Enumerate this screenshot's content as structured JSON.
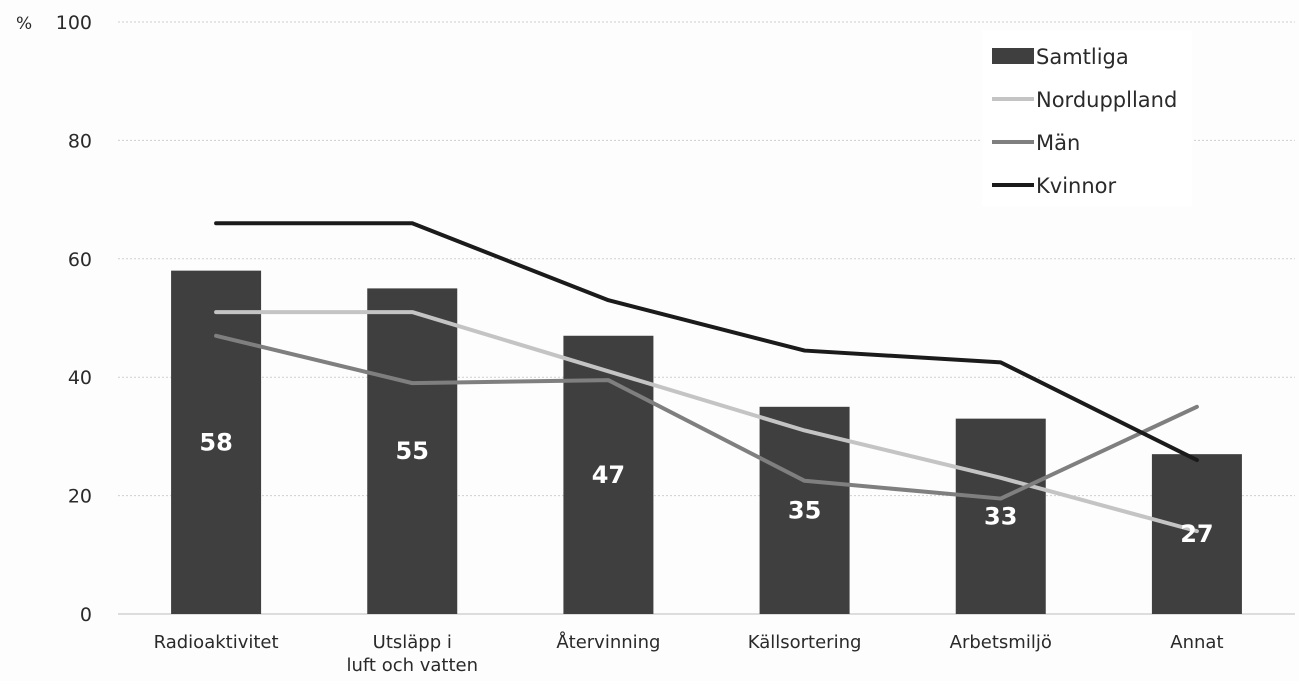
{
  "chart_data": {
    "type": "bar",
    "unit_label": "%",
    "ylim": [
      0,
      100
    ],
    "yticks": [
      0,
      20,
      40,
      60,
      80,
      100
    ],
    "grid": true,
    "legend_position": "top-right",
    "categories": [
      [
        "Radioaktivitet"
      ],
      [
        "Utsläpp i",
        "luft och vatten"
      ],
      [
        "Återvinning"
      ],
      [
        "Källsortering"
      ],
      [
        "Arbetsmiljö"
      ],
      [
        "Annat"
      ]
    ],
    "series": [
      {
        "name": "Samtliga",
        "kind": "bar",
        "color": "#3f3f3f",
        "values": [
          58,
          55,
          47,
          35,
          33,
          27
        ],
        "labels": [
          "58",
          "55",
          "47",
          "35",
          "33",
          "27"
        ]
      },
      {
        "name": "Nordupplland",
        "kind": "line",
        "color": "#c4c4c4",
        "values": [
          51,
          51,
          41,
          31,
          23,
          14
        ]
      },
      {
        "name": "Män",
        "kind": "line",
        "color": "#7f7f7f",
        "values": [
          47,
          39,
          39.5,
          22.5,
          19.5,
          35
        ]
      },
      {
        "name": "Kvinnor",
        "kind": "line",
        "color": "#1b1b1b",
        "values": [
          66,
          66,
          53,
          44.5,
          42.5,
          26
        ]
      }
    ]
  }
}
